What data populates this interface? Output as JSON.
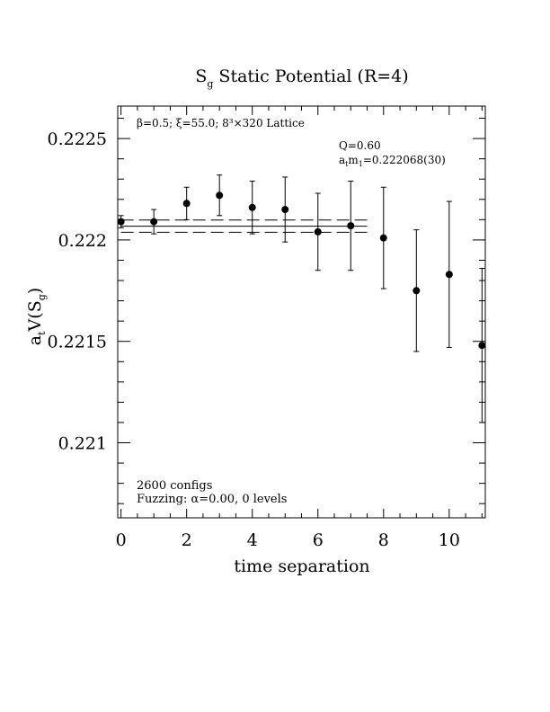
{
  "chart_data": {
    "type": "scatter",
    "title": {
      "main": "S",
      "sub": "g",
      "rest": " Static Potential (R=4)"
    },
    "xlabel": "time separation",
    "ylabel": {
      "a": "a",
      "t": "t",
      "V": "V(S",
      "g": "g",
      "close": ")"
    },
    "xlim": [
      -0.1,
      11.1
    ],
    "ylim": [
      0.22063,
      0.22266
    ],
    "x_ticks": [
      0,
      2,
      4,
      6,
      8,
      10
    ],
    "x_tick_labels": [
      "0",
      "2",
      "4",
      "6",
      "8",
      "10"
    ],
    "y_ticks": [
      0.221,
      0.2215,
      0.222,
      0.2225
    ],
    "y_tick_labels": [
      "0.221",
      "0.2215",
      "0.222",
      "0.2225"
    ],
    "grid": false,
    "series": [
      {
        "points": [
          {
            "x": 0,
            "y": 0.22209,
            "err": 3e-05
          },
          {
            "x": 1,
            "y": 0.22209,
            "err": 6e-05
          },
          {
            "x": 2,
            "y": 0.22218,
            "err": 8e-05
          },
          {
            "x": 3,
            "y": 0.22222,
            "err": 0.0001
          },
          {
            "x": 4,
            "y": 0.22216,
            "err": 0.00013
          },
          {
            "x": 5,
            "y": 0.22215,
            "err": 0.00016
          },
          {
            "x": 6,
            "y": 0.22204,
            "err": 0.00019
          },
          {
            "x": 7,
            "y": 0.22207,
            "err": 0.00022
          },
          {
            "x": 8,
            "y": 0.22201,
            "err": 0.00025
          },
          {
            "x": 9,
            "y": 0.22175,
            "err": 0.0003
          },
          {
            "x": 10,
            "y": 0.22183,
            "err": 0.00036
          },
          {
            "x": 11,
            "y": 0.22148,
            "err": 0.00038
          }
        ]
      }
    ],
    "fit": {
      "value": 0.222068,
      "error": 3e-05,
      "x_range": [
        0,
        7.5
      ]
    },
    "annotations": {
      "params": "β=0.5; ξ=55.0; 8³×320 Lattice",
      "q": "Q=0.60",
      "mass": {
        "a": "a",
        "t": "t",
        "m": "m",
        "sub": "1",
        "rest": "=0.222068(30)"
      },
      "configs": "2600 configs",
      "fuzzing": "Fuzzing: α=0.00, 0 levels"
    }
  }
}
